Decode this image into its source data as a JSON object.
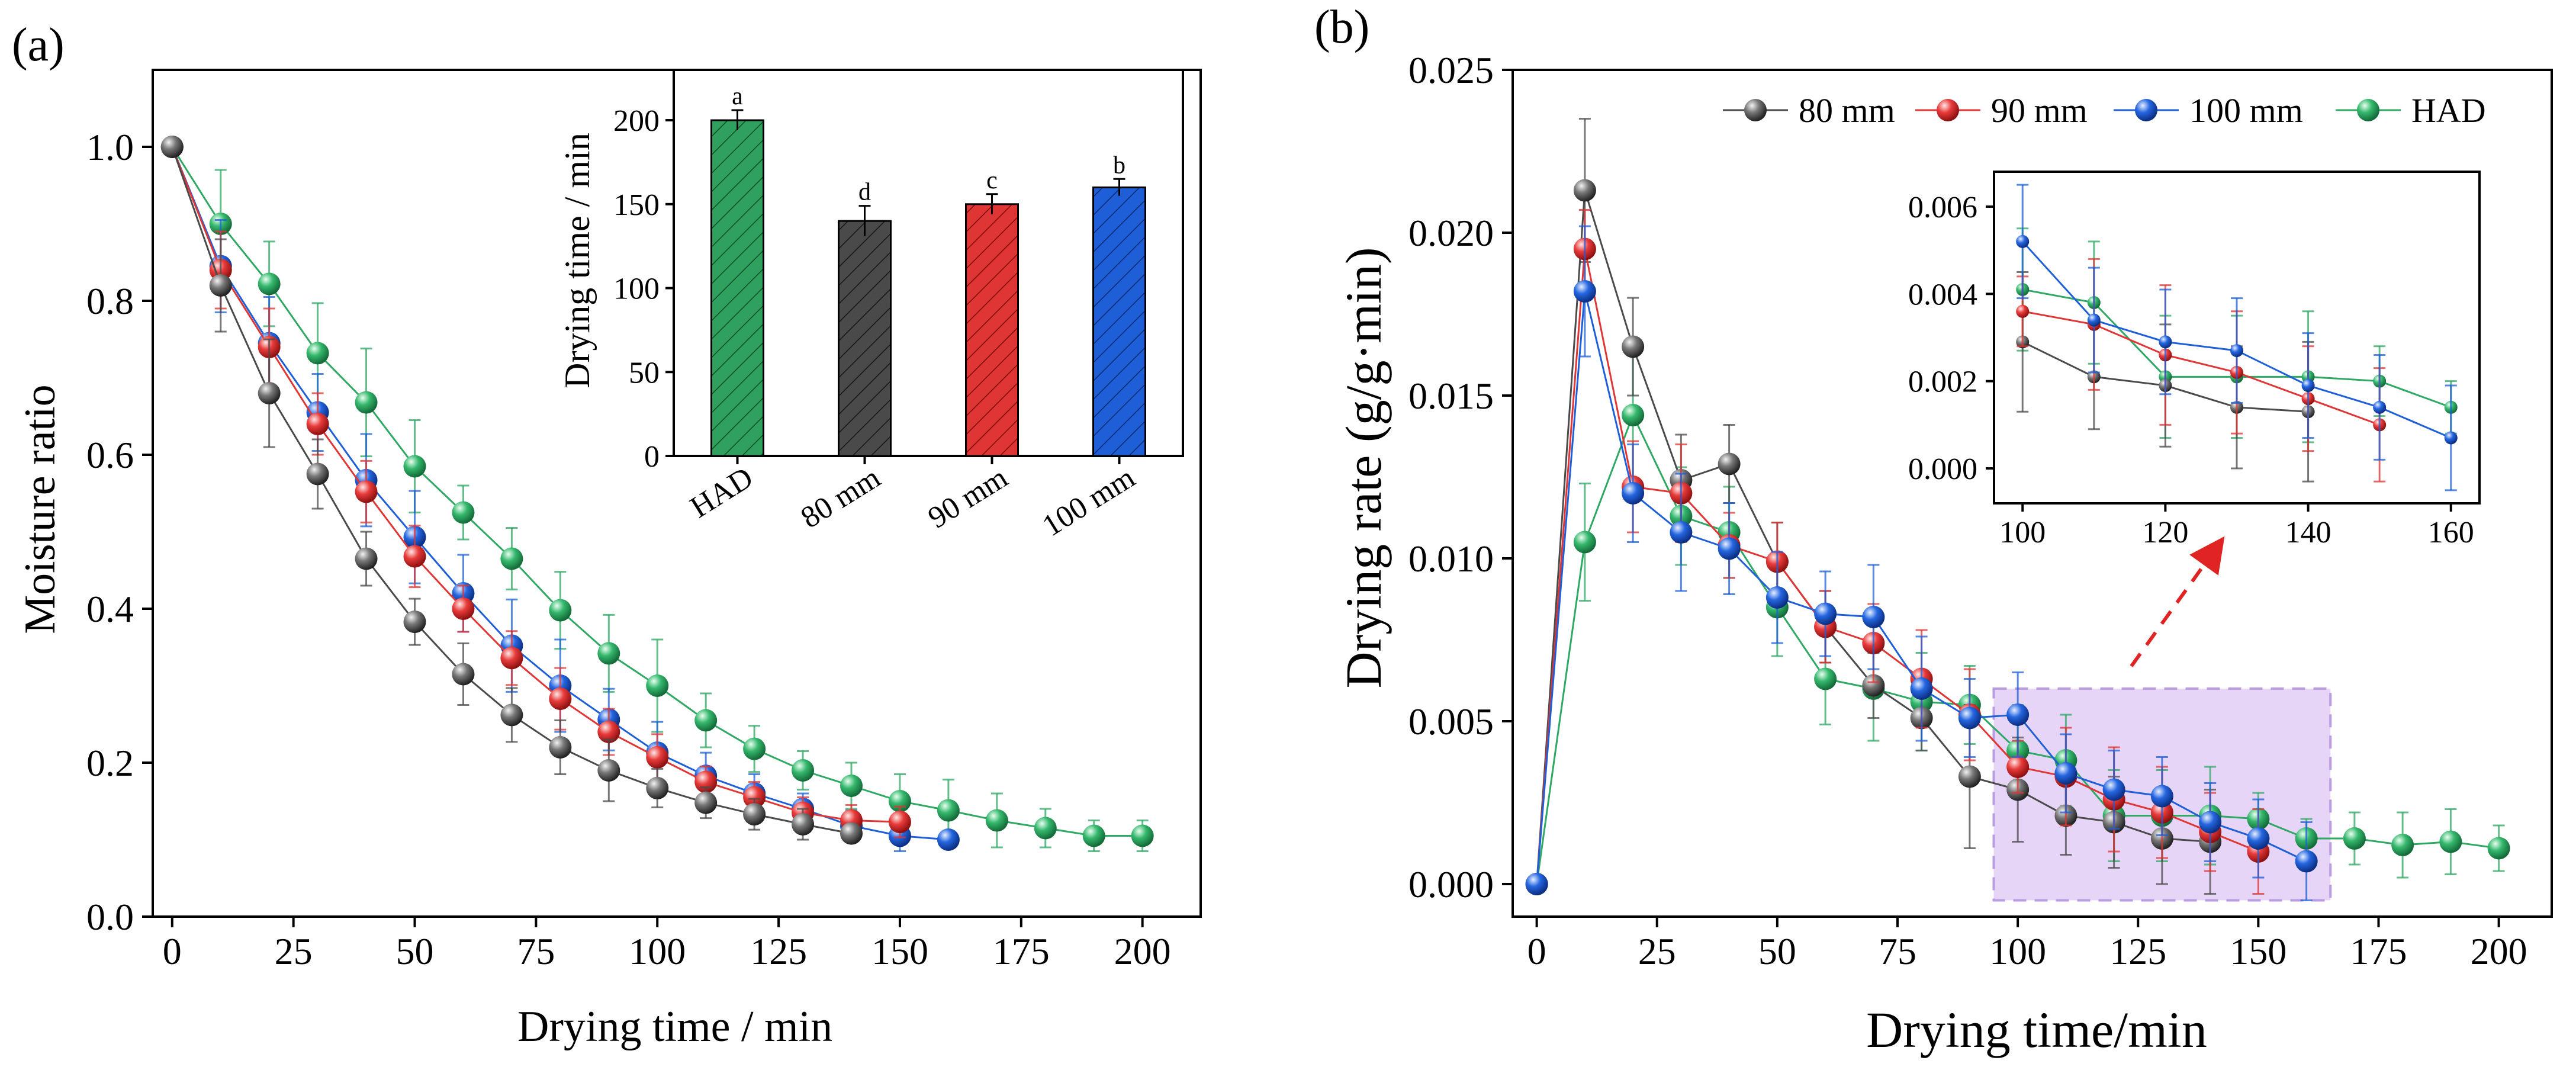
{
  "colors": {
    "80 mm": "#4a4a4a",
    "90 mm": "#e03535",
    "100 mm": "#1e5fd8",
    "HAD": "#2fa863",
    "highlight": "#e6d5f7",
    "highlight_border": "#b89be0",
    "arrow": "#e02424"
  },
  "chart_data": [
    {
      "id": "a",
      "type": "line",
      "panel_label": "(a)",
      "xlabel": "Drying time / min",
      "ylabel": "Moisture ratio",
      "xlim": [
        -4,
        212
      ],
      "ylim": [
        0,
        1.1
      ],
      "xticks": [
        0,
        25,
        50,
        75,
        100,
        125,
        150,
        175,
        200
      ],
      "yticks": [
        0.0,
        0.2,
        0.4,
        0.6,
        0.8,
        1.0
      ],
      "xtick_labels": [
        "0",
        "25",
        "50",
        "75",
        "100",
        "125",
        "150",
        "175",
        "200"
      ],
      "ytick_labels": [
        "0.0",
        "0.2",
        "0.4",
        "0.6",
        "0.8",
        "1.0"
      ],
      "grid": false,
      "series": [
        {
          "name": "80 mm",
          "x": [
            0,
            10,
            20,
            30,
            40,
            50,
            60,
            70,
            80,
            90,
            100,
            110,
            120,
            130,
            140
          ],
          "y": [
            1.0,
            0.82,
            0.68,
            0.575,
            0.465,
            0.383,
            0.315,
            0.262,
            0.22,
            0.19,
            0.167,
            0.148,
            0.133,
            0.12,
            0.108
          ],
          "err": [
            0,
            0.06,
            0.07,
            0.045,
            0.035,
            0.03,
            0.04,
            0.035,
            0.035,
            0.04,
            0.025,
            0.02,
            0.02,
            0.02,
            0.01
          ]
        },
        {
          "name": "90 mm",
          "x": [
            0,
            10,
            20,
            30,
            40,
            50,
            60,
            70,
            80,
            90,
            100,
            110,
            120,
            130,
            140,
            150
          ],
          "y": [
            1.0,
            0.84,
            0.74,
            0.64,
            0.552,
            0.468,
            0.4,
            0.336,
            0.283,
            0.24,
            0.207,
            0.175,
            0.155,
            0.135,
            0.125,
            0.123
          ],
          "err": [
            0,
            0.05,
            0.05,
            0.04,
            0.04,
            0.04,
            0.03,
            0.035,
            0.04,
            0.03,
            0.03,
            0.02,
            0.02,
            0.02,
            0.02,
            0.02
          ]
        },
        {
          "name": "100 mm",
          "x": [
            0,
            10,
            20,
            30,
            40,
            50,
            60,
            70,
            80,
            90,
            100,
            110,
            120,
            130,
            140,
            150,
            160
          ],
          "y": [
            1.0,
            0.845,
            0.745,
            0.655,
            0.567,
            0.493,
            0.42,
            0.352,
            0.3,
            0.256,
            0.213,
            0.183,
            0.16,
            0.14,
            0.118,
            0.105,
            0.1
          ],
          "err": [
            0,
            0.06,
            0.06,
            0.05,
            0.06,
            0.06,
            0.05,
            0.06,
            0.06,
            0.04,
            0.04,
            0.03,
            0.025,
            0.02,
            0.02,
            0.02,
            0.01
          ]
        },
        {
          "name": "HAD",
          "x": [
            0,
            10,
            20,
            30,
            40,
            50,
            60,
            70,
            80,
            90,
            100,
            110,
            120,
            130,
            140,
            150,
            160,
            170,
            180,
            190,
            200
          ],
          "y": [
            1.0,
            0.9,
            0.822,
            0.732,
            0.668,
            0.585,
            0.525,
            0.465,
            0.398,
            0.342,
            0.3,
            0.255,
            0.218,
            0.19,
            0.17,
            0.15,
            0.138,
            0.125,
            0.115,
            0.105,
            0.105
          ],
          "err": [
            0,
            0.07,
            0.055,
            0.065,
            0.07,
            0.06,
            0.035,
            0.04,
            0.05,
            0.05,
            0.06,
            0.035,
            0.03,
            0.025,
            0.03,
            0.035,
            0.04,
            0.035,
            0.025,
            0.02,
            0.02
          ]
        }
      ],
      "inset": {
        "type": "bar",
        "ylabel": "Drying time / min",
        "ylim": [
          0,
          230
        ],
        "yticks": [
          0,
          50,
          100,
          150,
          200
        ],
        "ytick_labels": [
          "0",
          "50",
          "100",
          "150",
          "200"
        ],
        "categories": [
          "HAD",
          "80 mm",
          "90 mm",
          "100 mm"
        ],
        "values": [
          200,
          140,
          150,
          160
        ],
        "err": [
          6,
          9,
          6,
          5
        ],
        "significance": [
          "a",
          "d",
          "c",
          "b"
        ]
      }
    },
    {
      "id": "b",
      "type": "line",
      "panel_label": "(b)",
      "xlabel": "Drying time/min",
      "ylabel": "Drying rate (g/g·min)",
      "xlim": [
        -5,
        211
      ],
      "ylim": [
        -0.001,
        0.025
      ],
      "xticks": [
        0,
        25,
        50,
        75,
        100,
        125,
        150,
        175,
        200
      ],
      "yticks": [
        0.0,
        0.005,
        0.01,
        0.015,
        0.02,
        0.025
      ],
      "xtick_labels": [
        "0",
        "25",
        "50",
        "75",
        "100",
        "125",
        "150",
        "175",
        "200"
      ],
      "ytick_labels": [
        "0.000",
        "0.005",
        "0.010",
        "0.015",
        "0.020",
        "0.025"
      ],
      "grid": false,
      "legend_position": "top-right",
      "legend": [
        "80 mm",
        "90 mm",
        "100 mm",
        "HAD"
      ],
      "highlight_x": [
        95,
        165
      ],
      "highlight_y": [
        -0.0005,
        0.006
      ],
      "series": [
        {
          "name": "80 mm",
          "x": [
            0,
            10,
            20,
            30,
            40,
            50,
            60,
            70,
            80,
            90,
            100,
            110,
            120,
            130,
            140
          ],
          "y": [
            0,
            0.0213,
            0.0165,
            0.0124,
            0.0129,
            0.0099,
            0.0079,
            0.0061,
            0.0051,
            0.0033,
            0.0029,
            0.0021,
            0.0019,
            0.0014,
            0.0013
          ],
          "err": [
            0,
            0.0022,
            0.0015,
            0.0014,
            0.0012,
            0.0012,
            0.0011,
            0.001,
            0.001,
            0.0022,
            0.0016,
            0.0012,
            0.0014,
            0.0014,
            0.0016
          ]
        },
        {
          "name": "90 mm",
          "x": [
            0,
            10,
            20,
            30,
            40,
            50,
            60,
            70,
            80,
            90,
            100,
            110,
            120,
            130,
            140,
            150
          ],
          "y": [
            0,
            0.0195,
            0.0122,
            0.012,
            0.0104,
            0.0099,
            0.0079,
            0.0074,
            0.0063,
            0.0052,
            0.0036,
            0.0033,
            0.0026,
            0.0022,
            0.0016,
            0.001
          ],
          "err": [
            0,
            0.0012,
            0.0014,
            0.0015,
            0.001,
            0.0012,
            0.0011,
            0.0012,
            0.0015,
            0.0014,
            0.0008,
            0.0015,
            0.0016,
            0.0014,
            0.0012,
            0.0013
          ]
        },
        {
          "name": "100 mm",
          "x": [
            0,
            10,
            20,
            30,
            40,
            50,
            60,
            70,
            80,
            90,
            100,
            110,
            120,
            130,
            140,
            150,
            160
          ],
          "y": [
            0,
            0.0182,
            0.012,
            0.0108,
            0.0103,
            0.0088,
            0.0083,
            0.0082,
            0.006,
            0.0051,
            0.0052,
            0.0034,
            0.0029,
            0.0027,
            0.0019,
            0.0014,
            0.0007
          ],
          "err": [
            0,
            0.002,
            0.0015,
            0.0018,
            0.0014,
            0.0014,
            0.0013,
            0.0016,
            0.0016,
            0.0012,
            0.0013,
            0.0012,
            0.0012,
            0.0012,
            0.0012,
            0.0012,
            0.0012
          ]
        },
        {
          "name": "HAD",
          "x": [
            0,
            10,
            20,
            30,
            40,
            50,
            60,
            70,
            80,
            90,
            100,
            110,
            120,
            130,
            140,
            150,
            160,
            170,
            180,
            190,
            200
          ],
          "y": [
            0,
            0.0105,
            0.0144,
            0.0113,
            0.0108,
            0.0085,
            0.0063,
            0.006,
            0.0056,
            0.0055,
            0.0041,
            0.0038,
            0.0021,
            0.0021,
            0.0021,
            0.002,
            0.0014,
            0.0014,
            0.0012,
            0.0013,
            0.0011
          ],
          "err": [
            0,
            0.0018,
            0.0022,
            0.0015,
            0.0014,
            0.0015,
            0.0014,
            0.0016,
            0.0015,
            0.0012,
            0.0014,
            0.0014,
            0.0014,
            0.0014,
            0.0015,
            0.0008,
            0.0006,
            0.0008,
            0.001,
            0.001,
            0.0007
          ]
        }
      ],
      "inset": {
        "type": "line",
        "xlim": [
          96,
          164
        ],
        "ylim": [
          -0.0008,
          0.0068
        ],
        "xticks": [
          100,
          120,
          140,
          160
        ],
        "yticks": [
          0.0,
          0.002,
          0.004,
          0.006
        ],
        "xtick_labels": [
          "100",
          "120",
          "140",
          "160"
        ],
        "ytick_labels": [
          "0.000",
          "0.002",
          "0.004",
          "0.006"
        ]
      }
    }
  ]
}
